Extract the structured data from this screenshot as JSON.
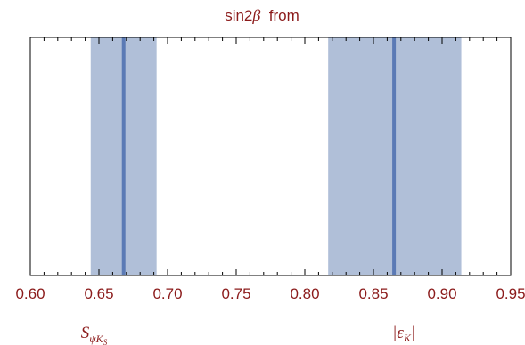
{
  "chart_data": {
    "type": "interval",
    "title": "sin2β  from",
    "title_prefix": "sin2",
    "title_symbol": "β",
    "title_suffix": "  from",
    "xlim": [
      0.6,
      0.95
    ],
    "x_ticks": [
      "0.60",
      "0.65",
      "0.70",
      "0.75",
      "0.80",
      "0.85",
      "0.90",
      "0.95"
    ],
    "x_tick_values": [
      0.6,
      0.65,
      0.7,
      0.75,
      0.8,
      0.85,
      0.9,
      0.95
    ],
    "series": [
      {
        "name": "S_ψK_S",
        "label_main": "S",
        "label_sub": "ψK",
        "label_subsub": "S",
        "central": 0.668,
        "band": [
          0.644,
          0.692
        ]
      },
      {
        "name": "|ε_K|",
        "label_main": "|ε",
        "label_sub": "K",
        "label_close": "|",
        "central": 0.865,
        "band": [
          0.817,
          0.914
        ]
      }
    ],
    "band_color": "#b0bfd8",
    "line_color": "#5b7ab5",
    "text_color": "#8b1a1a",
    "grid": false
  }
}
